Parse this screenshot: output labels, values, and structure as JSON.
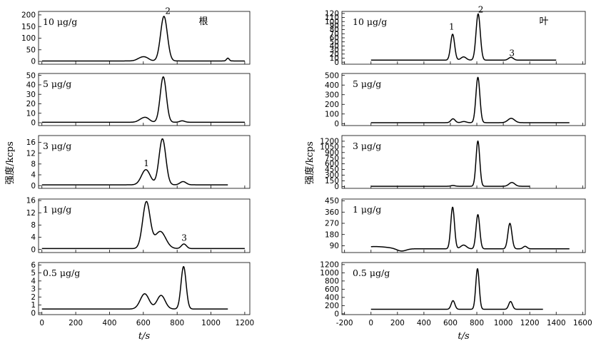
{
  "chart_data": [
    {
      "type": "line",
      "title": "根",
      "ylabel": "强度/kcps",
      "xlabel": "t/s",
      "x_ticks": [
        0,
        200,
        400,
        600,
        800,
        1000,
        1200
      ],
      "xlim": [
        -20,
        1230
      ],
      "panels": [
        {
          "concentration": "10 μg/g",
          "ylim": [
            -12,
            215
          ],
          "y_ticks": [
            0,
            50,
            100,
            150,
            200
          ],
          "baseline": 2,
          "line_start": 0,
          "line_end": 1200,
          "peak_labels": [
            {
              "text": "2",
              "x": 745,
              "y": 205
            }
          ],
          "peaks": [
            {
              "center": 590,
              "height": 14,
              "width": 25
            },
            {
              "center": 618,
              "height": 8,
              "width": 20
            },
            {
              "center": 722,
              "height": 192,
              "width": 20
            },
            {
              "center": 1100,
              "height": 12,
              "width": 8
            }
          ]
        },
        {
          "concentration": "5 μg/g",
          "ylim": [
            -3,
            52
          ],
          "y_ticks": [
            0,
            10,
            20,
            30,
            40,
            50
          ],
          "baseline": 0.5,
          "line_start": 0,
          "line_end": 1200,
          "peak_labels": [],
          "peaks": [
            {
              "center": 592,
              "height": 3,
              "width": 22
            },
            {
              "center": 620,
              "height": 3.5,
              "width": 20
            },
            {
              "center": 718,
              "height": 48,
              "width": 18
            },
            {
              "center": 830,
              "height": 1.5,
              "width": 15
            }
          ]
        },
        {
          "concentration": "3 μg/g",
          "ylim": [
            -1,
            18.5
          ],
          "y_ticks": [
            0,
            4,
            8,
            12,
            16
          ],
          "baseline": 0.3,
          "line_start": 0,
          "line_end": 1100,
          "peak_labels": [
            {
              "text": "1",
              "x": 618,
              "y": 7.2
            }
          ],
          "peaks": [
            {
              "center": 615,
              "height": 5.6,
              "width": 26
            },
            {
              "center": 713,
              "height": 17,
              "width": 20
            },
            {
              "center": 835,
              "height": 1.2,
              "width": 18
            }
          ]
        },
        {
          "concentration": "1 μg/g",
          "ylim": [
            -1,
            16.5
          ],
          "y_ticks": [
            0,
            4,
            8,
            12,
            16
          ],
          "baseline": 0.3,
          "line_start": 0,
          "line_end": 1200,
          "peak_labels": [
            {
              "text": "3",
              "x": 842,
              "y": 2.8
            }
          ],
          "peaks": [
            {
              "center": 618,
              "height": 15.2,
              "width": 22
            },
            {
              "center": 700,
              "height": 5.6,
              "width": 32
            },
            {
              "center": 840,
              "height": 1.5,
              "width": 15
            }
          ]
        },
        {
          "concentration": "0.5 μg/g",
          "ylim": [
            -0.2,
            6.3
          ],
          "y_ticks": [
            0,
            1,
            2,
            3,
            4,
            5,
            6
          ],
          "baseline": 0.5,
          "line_start": 0,
          "line_end": 1100,
          "peak_labels": [],
          "peaks": [
            {
              "center": 608,
              "height": 1.9,
              "width": 26
            },
            {
              "center": 705,
              "height": 1.7,
              "width": 24
            },
            {
              "center": 838,
              "height": 5.3,
              "width": 15
            }
          ]
        }
      ]
    },
    {
      "type": "line",
      "title": "叶",
      "ylabel": "强度/kcps",
      "xlabel": "t/s",
      "x_ticks": [
        -200,
        0,
        200,
        400,
        600,
        800,
        1000,
        1200,
        1400,
        1600
      ],
      "xlim": [
        -220,
        1620
      ],
      "panels": [
        {
          "concentration": "10 μg/g",
          "ylim": [
            -5,
            125
          ],
          "y_ticks": [
            0,
            10,
            20,
            30,
            40,
            50,
            60,
            70,
            80,
            90,
            100,
            110,
            120
          ],
          "baseline": 5,
          "line_start": 0,
          "line_end": 1400,
          "peak_labels": [
            {
              "text": "1",
              "x": 610,
              "y": 80
            },
            {
              "text": "2",
              "x": 830,
              "y": 122
            },
            {
              "text": "3",
              "x": 1065,
              "y": 15
            }
          ],
          "peaks": [
            {
              "center": 617,
              "height": 64,
              "width": 15
            },
            {
              "center": 700,
              "height": 8,
              "width": 20
            },
            {
              "center": 810,
              "height": 114,
              "width": 16
            },
            {
              "center": 1058,
              "height": 7,
              "width": 18
            }
          ]
        },
        {
          "concentration": "5 μg/g",
          "ylim": [
            -20,
            520
          ],
          "y_ticks": [
            0,
            100,
            200,
            300,
            400,
            500
          ],
          "baseline": 10,
          "line_start": 0,
          "line_end": 1500,
          "peak_labels": [],
          "peaks": [
            {
              "center": 620,
              "height": 40,
              "width": 16
            },
            {
              "center": 702,
              "height": 12,
              "width": 18
            },
            {
              "center": 808,
              "height": 470,
              "width": 15
            },
            {
              "center": 1060,
              "height": 45,
              "width": 25
            }
          ]
        },
        {
          "concentration": "3 μg/g",
          "ylim": [
            -50,
            1350
          ],
          "y_ticks": [
            0,
            150,
            300,
            450,
            600,
            750,
            900,
            1050,
            1200
          ],
          "baseline": 5,
          "line_start": 0,
          "line_end": 1200,
          "peak_labels": [],
          "peaks": [
            {
              "center": 620,
              "height": 20,
              "width": 16
            },
            {
              "center": 808,
              "height": 1200,
              "width": 14
            },
            {
              "center": 1065,
              "height": 100,
              "width": 22
            }
          ]
        },
        {
          "concentration": "1 μg/g",
          "ylim": [
            35,
            465
          ],
          "y_ticks": [
            90,
            180,
            270,
            360,
            450
          ],
          "baseline": 65,
          "line_start": 0,
          "line_end": 1500,
          "peak_labels": [],
          "peaks": [
            {
              "center": 30,
              "height": 18,
              "width": 100
            },
            {
              "center": 617,
              "height": 335,
              "width": 14
            },
            {
              "center": 700,
              "height": 30,
              "width": 22
            },
            {
              "center": 808,
              "height": 275,
              "width": 14
            },
            {
              "center": 1050,
              "height": 205,
              "width": 15
            },
            {
              "center": 1165,
              "height": 20,
              "width": 15
            }
          ],
          "dips": [
            {
              "center": 230,
              "depth": 20,
              "width": 35
            }
          ]
        },
        {
          "concentration": "0.5 μg/g",
          "ylim": [
            -20,
            1250
          ],
          "y_ticks": [
            0,
            200,
            400,
            600,
            800,
            1000,
            1200
          ],
          "baseline": 110,
          "line_start": 0,
          "line_end": 1300,
          "peak_labels": [],
          "peaks": [
            {
              "center": 620,
              "height": 210,
              "width": 14
            },
            {
              "center": 805,
              "height": 990,
              "width": 13
            },
            {
              "center": 1055,
              "height": 190,
              "width": 14
            }
          ]
        }
      ]
    }
  ]
}
